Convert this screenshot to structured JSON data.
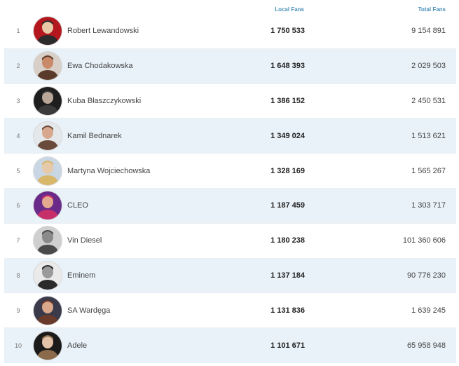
{
  "header": {
    "local_fans": "Local Fans",
    "total_fans": "Total Fans"
  },
  "rows": [
    {
      "rank": "1",
      "name": "Robert Lewandowski",
      "local": "1 750 533",
      "total": "9 154 891",
      "avatar": "portrait-icon",
      "colors": [
        "#b5171e",
        "#e8c9a8",
        "#2b2b2b"
      ]
    },
    {
      "rank": "2",
      "name": "Ewa Chodakowska",
      "local": "1 648 393",
      "total": "2 029 503",
      "avatar": "portrait-icon",
      "colors": [
        "#d8d0c8",
        "#c98a6a",
        "#5a3a2a"
      ]
    },
    {
      "rank": "3",
      "name": "Kuba Błaszczykowski",
      "local": "1 386 152",
      "total": "2 450 531",
      "avatar": "portrait-icon",
      "colors": [
        "#1e1e1e",
        "#b9a89a",
        "#3a3a3a"
      ]
    },
    {
      "rank": "4",
      "name": "Kamil Bednarek",
      "local": "1 349 024",
      "total": "1 513 621",
      "avatar": "portrait-icon",
      "colors": [
        "#e4e8ea",
        "#d7a88e",
        "#6a4a3a"
      ]
    },
    {
      "rank": "5",
      "name": "Martyna Wojciechowska",
      "local": "1 328 169",
      "total": "1 565 267",
      "avatar": "portrait-icon",
      "colors": [
        "#c9d6e4",
        "#e6c9a8",
        "#d8b66a"
      ]
    },
    {
      "rank": "6",
      "name": "CLEO",
      "local": "1 187 459",
      "total": "1 303 717",
      "avatar": "portrait-icon",
      "colors": [
        "#6a2a8a",
        "#e2a98e",
        "#c72f6a"
      ]
    },
    {
      "rank": "7",
      "name": "Vin Diesel",
      "local": "1 180 238",
      "total": "101 360 606",
      "avatar": "portrait-icon",
      "colors": [
        "#cfcfcf",
        "#8a8a8a",
        "#4a4a4a"
      ]
    },
    {
      "rank": "8",
      "name": "Eminem",
      "local": "1 137 184",
      "total": "90 776 230",
      "avatar": "portrait-icon",
      "colors": [
        "#eaeaea",
        "#9a9a9a",
        "#2a2a2a"
      ]
    },
    {
      "rank": "9",
      "name": "SA Wardęga",
      "local": "1 131 836",
      "total": "1 639 245",
      "avatar": "portrait-icon",
      "colors": [
        "#3a3a4a",
        "#d9a88a",
        "#6a3a2a"
      ]
    },
    {
      "rank": "10",
      "name": "Adele",
      "local": "1 101 671",
      "total": "65 958 948",
      "avatar": "portrait-icon",
      "colors": [
        "#1a1a1a",
        "#e2c2a8",
        "#8a6a4a"
      ]
    }
  ]
}
